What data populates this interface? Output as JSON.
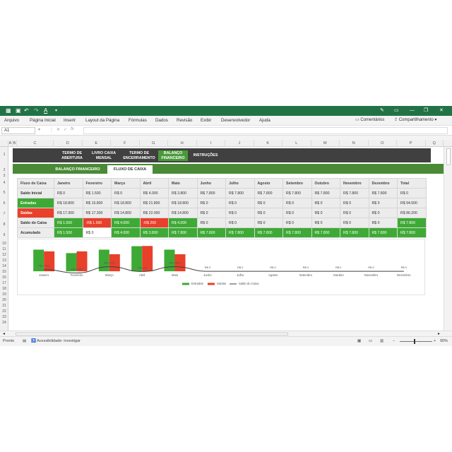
{
  "titlebar": {
    "icons": [
      "excel-app-icon",
      "save-icon",
      "undo-icon",
      "redo-icon",
      "font-color-icon",
      "customize-icon"
    ],
    "pen_icon": "pen-icon",
    "window_controls": [
      "minimize-icon",
      "restore-icon",
      "close-icon"
    ]
  },
  "menu": {
    "items": [
      "Arquivo",
      "Página Inicial",
      "Inserir",
      "Layout da Página",
      "Fórmulas",
      "Dados",
      "Revisão",
      "Exibir",
      "Desenvolvedor",
      "Ajuda"
    ],
    "comments": "Comentários",
    "share": "Compartilhamento"
  },
  "formula_bar": {
    "name_box": "A1",
    "formula": ""
  },
  "columns": [
    "A",
    "B",
    "C",
    "D",
    "E",
    "F",
    "G",
    "H",
    "I",
    "J",
    "K",
    "L",
    "M",
    "N",
    "O",
    "P",
    "Q"
  ],
  "rows": [
    "1",
    "2",
    "3",
    "4",
    "5",
    "6",
    "7",
    "8",
    "9",
    "10",
    "11",
    "12",
    "13",
    "14",
    "15",
    "16",
    "17",
    "18",
    "19",
    "20",
    "21",
    "22",
    "23",
    "24"
  ],
  "nav": {
    "buttons": [
      "TERMO DE ABERTURA",
      "LIVRO CAIXA MENSAL",
      "TERMO DE ENCERRAMENTO",
      "BALANÇO FINANCEIRO",
      "INSTRUÇÕES"
    ],
    "active_index": 3
  },
  "tabs": [
    "BALANÇO FINANCEIRO",
    "FLUXO DE CAIXA"
  ],
  "table": {
    "header_label": "Fluxo de Caixa",
    "months": [
      "Janeiro",
      "Fevereiro",
      "Março",
      "Abril",
      "Maio",
      "Junho",
      "Julho",
      "Agosto",
      "Setembro",
      "Outubro",
      "Novembro",
      "Dezembro",
      "Total"
    ],
    "rows": [
      {
        "label": "Saldo Inicial",
        "label_style": "gy",
        "values": [
          "R$ 0",
          "R$ 1.500",
          "R$ 0",
          "R$ 4.000",
          "R$ 3.800",
          "R$ 7.800",
          "R$ 7.800",
          "R$ 7.800",
          "R$ 7.800",
          "R$ 7.800",
          "R$ 7.800",
          "R$ 7.800",
          "R$ 0"
        ],
        "styles": [
          "gy",
          "gy",
          "gy",
          "gy",
          "gy",
          "gy",
          "gy",
          "gy",
          "gy",
          "gy",
          "gy",
          "gy",
          "gy"
        ]
      },
      {
        "label": "Entradas",
        "label_style": "g",
        "values": [
          "R$ 18.800",
          "R$ 15.800",
          "R$ 18.800",
          "R$ 21.800",
          "R$ 18.800",
          "R$ 0",
          "R$ 0",
          "R$ 0",
          "R$ 0",
          "R$ 0",
          "R$ 0",
          "R$ 0",
          "R$ 94.000"
        ],
        "styles": [
          "gy",
          "gy",
          "gy",
          "gy",
          "gy",
          "gy",
          "gy",
          "gy",
          "gy",
          "gy",
          "gy",
          "gy",
          "gy"
        ]
      },
      {
        "label": "Saídas",
        "label_style": "r",
        "values": [
          "R$ 17.300",
          "R$ 17.300",
          "R$ 14.800",
          "R$ 22.000",
          "R$ 14.800",
          "R$ 0",
          "R$ 0",
          "R$ 0",
          "R$ 0",
          "R$ 0",
          "R$ 0",
          "R$ 0",
          "R$ 86.200"
        ],
        "styles": [
          "gy",
          "gy",
          "gy",
          "gy",
          "gy",
          "gy",
          "gy",
          "gy",
          "gy",
          "gy",
          "gy",
          "gy",
          "gy"
        ]
      },
      {
        "label": "Saldo do Caixa",
        "label_style": "gy",
        "values": [
          "R$ 1.500",
          "-R$ 1.500",
          "R$ 4.000",
          "-R$ 200",
          "R$ 4.000",
          "R$ 0",
          "R$ 0",
          "R$ 0",
          "R$ 0",
          "R$ 0",
          "R$ 0",
          "R$ 0",
          "R$ 7.800"
        ],
        "styles": [
          "g",
          "r",
          "g",
          "r",
          "g",
          "gy",
          "gy",
          "gy",
          "gy",
          "gy",
          "gy",
          "gy",
          "g"
        ]
      },
      {
        "label": "Acumulado",
        "label_style": "gy",
        "values": [
          "R$ 1.500",
          "R$ 0",
          "R$ 4.000",
          "R$ 3.800",
          "R$ 7.800",
          "R$ 7.800",
          "R$ 7.800",
          "R$ 7.800",
          "R$ 7.800",
          "R$ 7.800",
          "R$ 7.800",
          "R$ 7.800",
          "R$ 7.800"
        ],
        "styles": [
          "g",
          "w",
          "g",
          "g",
          "g",
          "g",
          "g",
          "g",
          "g",
          "g",
          "g",
          "g",
          "g"
        ]
      }
    ]
  },
  "chart_data": {
    "type": "bar",
    "title": "",
    "xlabel": "",
    "ylabel": "",
    "categories": [
      "Janeiro",
      "Fevereiro",
      "Março",
      "Abril",
      "Maio",
      "Junho",
      "Julho",
      "Agosto",
      "Setembro",
      "Outubro",
      "Novembro",
      "Dezembro"
    ],
    "series": [
      {
        "name": "Entradas",
        "kind": "bar",
        "color": "#3eaa35",
        "values": [
          18800,
          15800,
          18800,
          21800,
          18800,
          0,
          0,
          0,
          0,
          0,
          0,
          0
        ]
      },
      {
        "name": "Saídas",
        "kind": "bar",
        "color": "#e8402a",
        "values": [
          17300,
          17300,
          14800,
          22000,
          14800,
          0,
          0,
          0,
          0,
          0,
          0,
          0
        ]
      },
      {
        "name": "Saldo do Caixa",
        "kind": "line",
        "color": "#404040",
        "values": [
          1500,
          -1500,
          4000,
          -200,
          4000,
          0,
          0,
          0,
          0,
          0,
          0,
          0
        ]
      }
    ],
    "data_labels": [
      "R$ 1.500",
      "-R$ 1.500",
      "R$ 4.000",
      "-R$ 200",
      "R$ 4.000",
      "R$ 0",
      "R$ 0",
      "R$ 0",
      "R$ 0",
      "R$ 0",
      "R$ 0",
      "R$ 0"
    ],
    "ylim": [
      -3000,
      24000
    ],
    "grid": false,
    "legend": "bottom"
  },
  "status": {
    "ready": "Pronto",
    "accessibility": "Acessibilidade: investigar",
    "zoom": "90%"
  }
}
